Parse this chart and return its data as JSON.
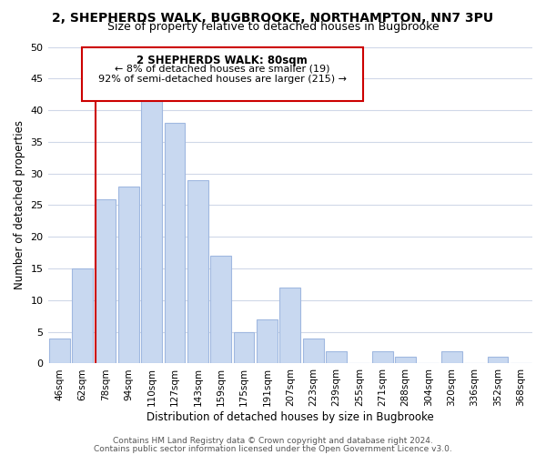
{
  "title": "2, SHEPHERDS WALK, BUGBROOKE, NORTHAMPTON, NN7 3PU",
  "subtitle": "Size of property relative to detached houses in Bugbrooke",
  "xlabel": "Distribution of detached houses by size in Bugbrooke",
  "ylabel": "Number of detached properties",
  "bar_color": "#c8d8f0",
  "bar_edge_color": "#a0b8e0",
  "categories": [
    "46sqm",
    "62sqm",
    "78sqm",
    "94sqm",
    "110sqm",
    "127sqm",
    "143sqm",
    "159sqm",
    "175sqm",
    "191sqm",
    "207sqm",
    "223sqm",
    "239sqm",
    "255sqm",
    "271sqm",
    "288sqm",
    "304sqm",
    "320sqm",
    "336sqm",
    "352sqm",
    "368sqm"
  ],
  "values": [
    4,
    15,
    26,
    28,
    42,
    38,
    29,
    17,
    5,
    7,
    12,
    4,
    2,
    0,
    2,
    1,
    0,
    2,
    0,
    1,
    0
  ],
  "ylim": [
    0,
    50
  ],
  "yticks": [
    0,
    5,
    10,
    15,
    20,
    25,
    30,
    35,
    40,
    45,
    50
  ],
  "vline_index": 2,
  "vline_color": "#cc0000",
  "annotation_title": "2 SHEPHERDS WALK: 80sqm",
  "annotation_line1": "← 8% of detached houses are smaller (19)",
  "annotation_line2": "92% of semi-detached houses are larger (215) →",
  "annotation_box_color": "#ffffff",
  "annotation_box_edge": "#cc0000",
  "footer1": "Contains HM Land Registry data © Crown copyright and database right 2024.",
  "footer2": "Contains public sector information licensed under the Open Government Licence v3.0.",
  "background_color": "#ffffff",
  "grid_color": "#d0d8e8"
}
